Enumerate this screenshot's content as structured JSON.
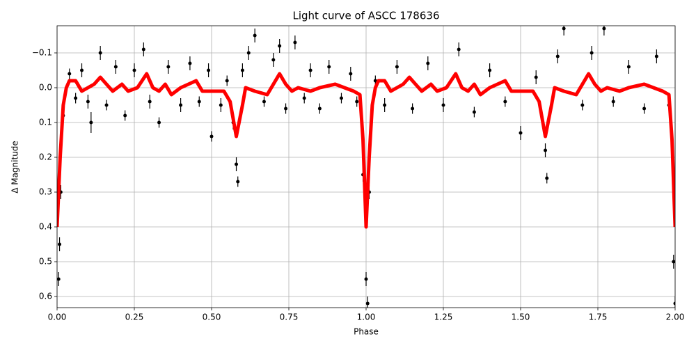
{
  "chart_data": {
    "type": "scatter",
    "title": "Light curve of ASCC 178636",
    "xlabel": "Phase",
    "ylabel": "Δ Magnitude",
    "xlim": [
      0,
      2
    ],
    "ylim": [
      -0.178,
      0.632
    ],
    "y_inverted": true,
    "grid": true,
    "xticks": [
      {
        "value": 0,
        "label": "0.00"
      },
      0.25,
      {
        "value": 0.5,
        "label": "0.50"
      },
      0.75,
      {
        "value": 1,
        "label": "1.00"
      },
      1.25,
      {
        "value": 1.5,
        "label": "1.50"
      },
      1.75,
      {
        "value": 2,
        "label": "2.00"
      }
    ],
    "yticks": [
      {
        "value": -0.1,
        "label": "−0.1"
      },
      {
        "value": 0,
        "label": "0.0"
      },
      0.1,
      0.2,
      0.3,
      0.4,
      0.5,
      0.6
    ],
    "series": [
      {
        "type": "errorbar",
        "color": "#000000",
        "x": [
          0.005,
          0.008,
          0.012,
          0.02,
          0.04,
          0.06,
          0.08,
          0.1,
          0.11,
          0.14,
          0.16,
          0.19,
          0.22,
          0.25,
          0.28,
          0.3,
          0.33,
          0.36,
          0.4,
          0.43,
          0.46,
          0.49,
          0.5,
          0.53,
          0.55,
          0.57,
          0.58,
          0.585,
          0.6,
          0.62,
          0.64,
          0.67,
          0.7,
          0.72,
          0.74,
          0.77,
          0.8,
          0.82,
          0.85,
          0.88,
          0.92,
          0.95,
          0.97,
          0.99,
          1.0,
          1.005,
          1.01,
          1.03,
          1.06,
          1.1,
          1.15,
          1.2,
          1.25,
          1.3,
          1.35,
          1.4,
          1.45,
          1.5,
          1.55,
          1.58,
          1.585,
          1.62,
          1.64,
          1.7,
          1.73,
          1.77,
          1.8,
          1.85,
          1.9,
          1.94,
          1.98,
          1.995,
          2.0
        ],
        "values": [
          0.55,
          0.45,
          0.3,
          0.08,
          -0.04,
          0.03,
          -0.05,
          0.04,
          0.1,
          -0.1,
          0.05,
          -0.06,
          0.08,
          -0.05,
          -0.11,
          0.04,
          0.1,
          -0.06,
          0.05,
          -0.07,
          0.04,
          -0.05,
          0.14,
          0.05,
          -0.02,
          0.1,
          0.22,
          0.27,
          -0.05,
          -0.1,
          -0.15,
          0.04,
          -0.08,
          -0.12,
          0.06,
          -0.13,
          0.03,
          -0.05,
          0.06,
          -0.06,
          0.03,
          -0.04,
          0.04,
          0.25,
          0.55,
          0.62,
          0.3,
          -0.02,
          0.05,
          -0.06,
          0.06,
          -0.07,
          0.05,
          -0.11,
          0.07,
          -0.05,
          0.04,
          0.13,
          -0.03,
          0.18,
          0.26,
          -0.09,
          -0.17,
          0.05,
          -0.1,
          -0.17,
          0.04,
          -0.06,
          0.06,
          -0.09,
          0.05,
          0.5,
          0.62
        ],
        "errors": [
          0.02,
          0.02,
          0.02,
          0.015,
          0.015,
          0.015,
          0.02,
          0.02,
          0.03,
          0.02,
          0.015,
          0.02,
          0.015,
          0.02,
          0.02,
          0.02,
          0.015,
          0.02,
          0.02,
          0.02,
          0.015,
          0.02,
          0.015,
          0.02,
          0.015,
          0.02,
          0.02,
          0.015,
          0.02,
          0.02,
          0.02,
          0.015,
          0.02,
          0.02,
          0.015,
          0.02,
          0.015,
          0.02,
          0.015,
          0.02,
          0.015,
          0.02,
          0.015,
          0.02,
          0.02,
          0.02,
          0.02,
          0.015,
          0.02,
          0.02,
          0.015,
          0.02,
          0.02,
          0.02,
          0.015,
          0.02,
          0.015,
          0.02,
          0.02,
          0.02,
          0.015,
          0.02,
          0.02,
          0.015,
          0.02,
          0.02,
          0.015,
          0.02,
          0.015,
          0.02,
          0.015,
          0.02,
          0.02
        ]
      },
      {
        "type": "line",
        "color": "#ff0000",
        "x": [
          0.0,
          0.01,
          0.02,
          0.03,
          0.04,
          0.06,
          0.08,
          0.1,
          0.12,
          0.14,
          0.16,
          0.18,
          0.21,
          0.23,
          0.26,
          0.29,
          0.31,
          0.33,
          0.35,
          0.37,
          0.4,
          0.45,
          0.47,
          0.5,
          0.54,
          0.56,
          0.58,
          0.6,
          0.61,
          0.64,
          0.68,
          0.7,
          0.72,
          0.74,
          0.76,
          0.78,
          0.82,
          0.85,
          0.9,
          0.93,
          0.96,
          0.98,
          0.99,
          1.0,
          1.01,
          1.02,
          1.03,
          1.04,
          1.06,
          1.08,
          1.1,
          1.12,
          1.14,
          1.16,
          1.18,
          1.21,
          1.23,
          1.26,
          1.29,
          1.31,
          1.33,
          1.35,
          1.37,
          1.4,
          1.45,
          1.47,
          1.5,
          1.54,
          1.56,
          1.58,
          1.6,
          1.61,
          1.64,
          1.68,
          1.7,
          1.72,
          1.74,
          1.76,
          1.78,
          1.82,
          1.85,
          1.9,
          1.93,
          1.96,
          1.98,
          1.99,
          2.0
        ],
        "values": [
          0.4,
          0.2,
          0.05,
          0.0,
          -0.02,
          -0.02,
          0.01,
          0.0,
          -0.01,
          -0.03,
          -0.01,
          0.01,
          -0.01,
          0.01,
          0.0,
          -0.04,
          0.0,
          0.01,
          -0.01,
          0.02,
          0.0,
          -0.02,
          0.01,
          0.01,
          0.01,
          0.04,
          0.14,
          0.05,
          0.0,
          0.01,
          0.02,
          -0.01,
          -0.04,
          -0.01,
          0.01,
          0.0,
          0.01,
          0.0,
          -0.01,
          0.0,
          0.01,
          0.02,
          0.15,
          0.4,
          0.2,
          0.05,
          0.0,
          -0.02,
          -0.02,
          0.01,
          0.0,
          -0.01,
          -0.03,
          -0.01,
          0.01,
          -0.01,
          0.01,
          0.0,
          -0.04,
          0.0,
          0.01,
          -0.01,
          0.02,
          0.0,
          -0.02,
          0.01,
          0.01,
          0.01,
          0.04,
          0.14,
          0.05,
          0.0,
          0.01,
          0.02,
          -0.01,
          -0.04,
          -0.01,
          0.01,
          0.0,
          0.01,
          0.0,
          -0.01,
          0.0,
          0.01,
          0.02,
          0.15,
          0.4
        ]
      }
    ]
  }
}
